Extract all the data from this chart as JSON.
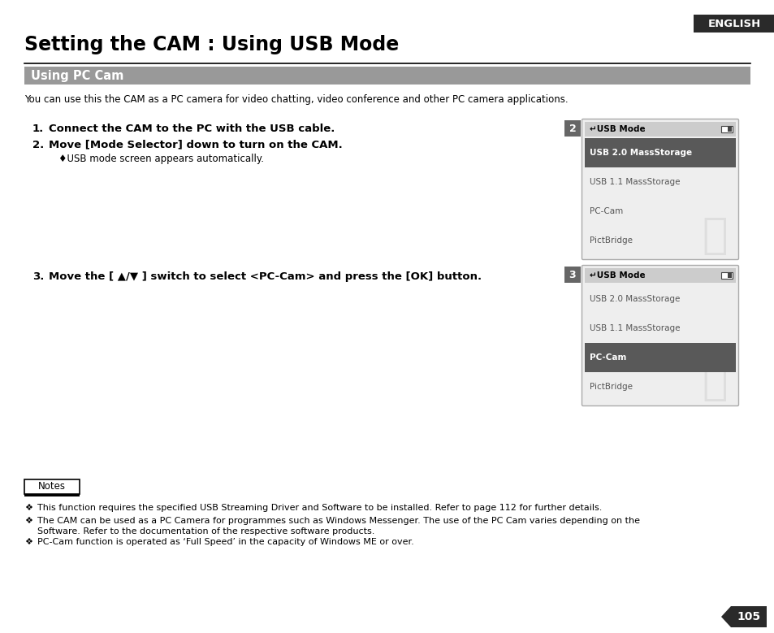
{
  "title": "Setting the CAM : Using USB Mode",
  "section_header": "Using PC Cam",
  "intro_text": "You can use this the CAM as a PC camera for video chatting, video conference and other PC camera applications.",
  "step1_num": "1.",
  "step1_text": "Connect the CAM to the PC with the USB cable.",
  "step2_num": "2.",
  "step2_text": "Move [Mode Selector] down to turn on the CAM.",
  "step2_sub": "♦USB mode screen appears automatically.",
  "step3_num": "3.",
  "step3_text": "Move the [ ▲/▼ ] switch to select <PC-Cam> and press the [OK] button.",
  "screen1_step": "2",
  "screen1_items": [
    "USB 2.0 MassStorage",
    "USB 1.1 MassStorage",
    "PC-Cam",
    "PictBridge"
  ],
  "screen1_selected": 0,
  "screen2_step": "3",
  "screen2_items": [
    "USB 2.0 MassStorage",
    "USB 1.1 MassStorage",
    "PC-Cam",
    "PictBridge"
  ],
  "screen2_selected": 2,
  "notes_label": "Notes",
  "note1": "This function requires the specified USB Streaming Driver and Software to be installed. Refer to page 112 for further details.",
  "note2a": "The CAM can be used as a PC Camera for programmes such as Windows Messenger. The use of the PC Cam varies depending on the",
  "note2b": "Software. Refer to the documentation of the respective software products.",
  "note3": "PC-Cam function is operated as ‘Full Speed’ in the capacity of Windows ME or over.",
  "page_num": "105",
  "english_label": "ENGLISH",
  "bg_color": "#ffffff",
  "section_bg": "#999999",
  "section_text": "#ffffff",
  "selected_bg": "#595959",
  "screen_bg": "#eeeeee",
  "screen_border": "#aaaaaa",
  "hdr_bg": "#cccccc",
  "badge_bg": "#666666",
  "english_bg": "#2a2a2a",
  "page_bg": "#2a2a2a"
}
